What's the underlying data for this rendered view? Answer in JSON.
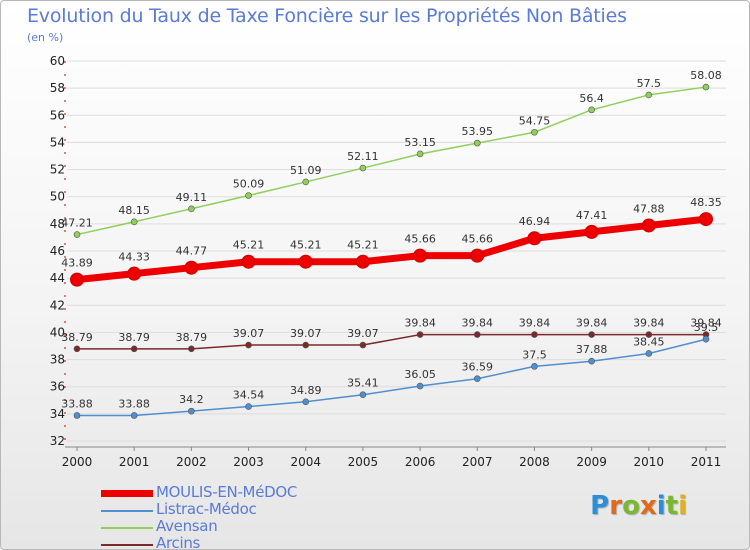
{
  "title": "Evolution du Taux de Taxe Foncière sur les Propriétés Non Bâties",
  "unit_label": "(en %)",
  "logo_text": "Proxiti",
  "chart_data": {
    "type": "line",
    "title": "Evolution du Taux de Taxe Foncière sur les Propriétés Non Bâties",
    "ylabel": "(en %)",
    "xlabel": "",
    "x": [
      "2000",
      "2001",
      "2002",
      "2003",
      "2004",
      "2005",
      "2006",
      "2007",
      "2008",
      "2009",
      "2010",
      "2011"
    ],
    "ylim": [
      32,
      60
    ],
    "yticks": [
      32,
      34,
      36,
      38,
      40,
      42,
      44,
      46,
      48,
      50,
      52,
      54,
      56,
      58,
      60
    ],
    "grid": "horizontal",
    "legend_position": "bottom-left",
    "series": [
      {
        "name": "MOULIS-EN-MéDOC",
        "color": "#ee0000",
        "values": [
          43.89,
          44.33,
          44.77,
          45.21,
          45.21,
          45.21,
          45.66,
          45.66,
          46.94,
          47.41,
          47.88,
          48.35
        ],
        "labels": [
          "43.89",
          "44.33",
          "44.77",
          "45.21",
          "45.21",
          "45.21",
          "45.66",
          "45.66",
          "46.94",
          "47.41",
          "47.88",
          "48.35"
        ]
      },
      {
        "name": "Listrac-Médoc",
        "color": "#4f8fd0",
        "values": [
          33.88,
          33.88,
          34.2,
          34.54,
          34.89,
          35.41,
          36.05,
          36.59,
          37.5,
          37.88,
          38.45,
          39.5
        ],
        "labels": [
          "33.88",
          "33.88",
          "34.2",
          "34.54",
          "34.89",
          "35.41",
          "36.05",
          "36.59",
          "37.5",
          "37.88",
          "38.45",
          "39.5"
        ]
      },
      {
        "name": "Avensan",
        "color": "#8fd05a",
        "values": [
          47.21,
          48.15,
          49.11,
          50.09,
          51.09,
          52.11,
          53.15,
          53.95,
          54.75,
          56.4,
          57.5,
          58.08
        ],
        "labels": [
          "47.21",
          "48.15",
          "49.11",
          "50.09",
          "51.09",
          "52.11",
          "53.15",
          "53.95",
          "54.75",
          "56.4",
          "57.5",
          "58.08"
        ]
      },
      {
        "name": "Arcins",
        "color": "#7a2a2a",
        "values": [
          38.79,
          38.79,
          38.79,
          39.07,
          39.07,
          39.07,
          39.84,
          39.84,
          39.84,
          39.84,
          39.84,
          39.84
        ],
        "labels": [
          "38.79",
          "38.79",
          "38.79",
          "39.07",
          "39.07",
          "39.07",
          "39.84",
          "39.84",
          "39.84",
          "39.84",
          "39.84",
          "39.84"
        ]
      }
    ]
  }
}
